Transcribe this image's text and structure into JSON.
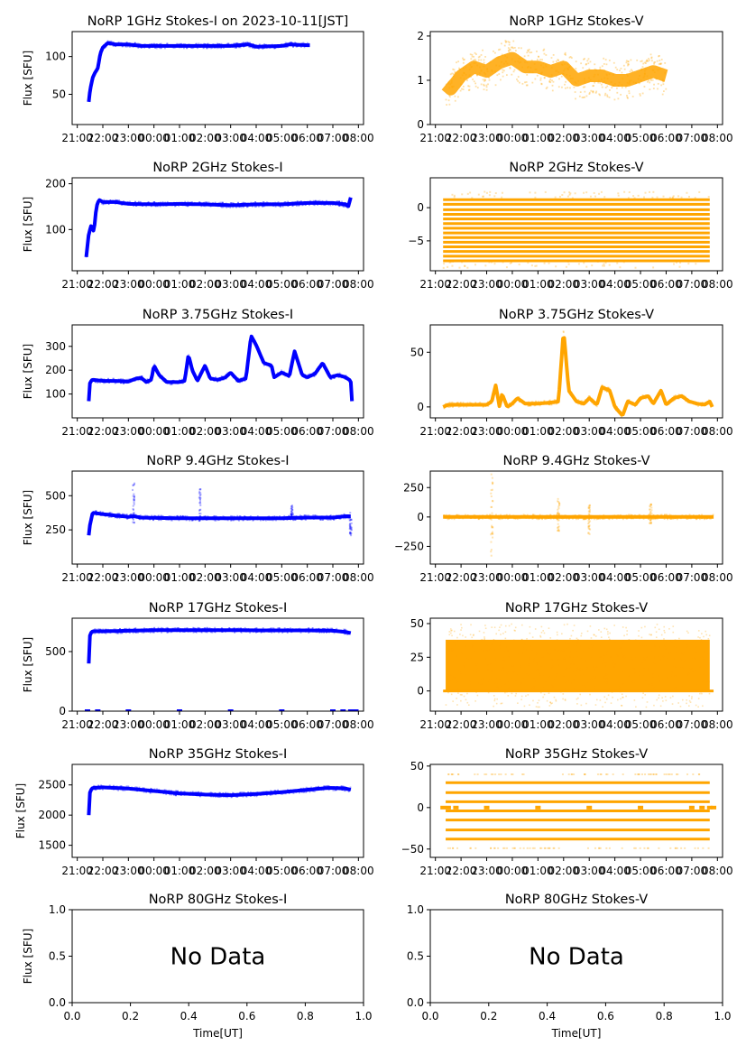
{
  "figure": {
    "ylabel": "Flux [SFU]",
    "xlabel": "Time[UT]",
    "no_data_text": "No Data",
    "time_ticks": [
      "21:00",
      "22:00",
      "23:00",
      "00:00",
      "01:00",
      "02:00",
      "03:00",
      "04:00",
      "05:00",
      "06:00",
      "07:00",
      "08:00"
    ],
    "colors": {
      "stokes_i": "#0000ff",
      "stokes_v": "#ffa500"
    }
  },
  "chart_data": [
    {
      "type": "scatter",
      "title": "NoRP 1GHz Stokes-I on 2023-10-11[JST]",
      "stokes": "I",
      "xlabel": "",
      "ylabel": "Flux [SFU]",
      "xlim_hours": [
        20.8,
        32.2
      ],
      "ylim": [
        10,
        133
      ],
      "yticks": [
        50,
        100
      ],
      "has_data": true,
      "x_hours": [
        21.45,
        21.5,
        21.6,
        21.7,
        21.8,
        21.9,
        22.0,
        22.1,
        22.2,
        22.5,
        23.0,
        23.5,
        24.0,
        25.0,
        26.0,
        27.0,
        27.7,
        28.0,
        29.0,
        29.3,
        30.0,
        30.1
      ],
      "values": [
        40,
        55,
        72,
        79,
        84,
        104,
        112,
        115,
        118,
        116,
        116,
        114,
        114,
        114,
        114,
        114,
        116,
        113,
        114,
        116,
        115,
        115
      ]
    },
    {
      "type": "scatter",
      "title": "NoRP 1GHz Stokes-V",
      "stokes": "V",
      "xlabel": "",
      "ylabel": "",
      "xlim_hours": [
        20.8,
        32.2
      ],
      "ylim": [
        0,
        2.1
      ],
      "yticks": [
        0,
        1,
        2
      ],
      "has_data": true,
      "x_hours": [
        21.4,
        21.6,
        22.0,
        22.5,
        23.0,
        23.5,
        24.0,
        24.5,
        25.0,
        25.5,
        26.0,
        26.5,
        27.0,
        27.5,
        28.0,
        28.5,
        29.0,
        29.5,
        30.0
      ],
      "values": [
        0.9,
        0.8,
        1.1,
        1.3,
        1.2,
        1.4,
        1.5,
        1.3,
        1.3,
        1.2,
        1.3,
        1.0,
        1.1,
        1.1,
        1.0,
        1.0,
        1.1,
        1.2,
        1.1
      ],
      "spread": 0.45
    },
    {
      "type": "scatter",
      "title": "NoRP 2GHz Stokes-I",
      "stokes": "I",
      "xlabel": "",
      "ylabel": "Flux [SFU]",
      "xlim_hours": [
        20.8,
        32.2
      ],
      "ylim": [
        10,
        213
      ],
      "yticks": [
        100,
        200
      ],
      "has_data": true,
      "x_hours": [
        21.35,
        21.45,
        21.55,
        21.65,
        21.75,
        21.85,
        22.0,
        22.5,
        23.0,
        24.0,
        25.0,
        26.0,
        27.0,
        28.0,
        29.0,
        30.0,
        31.0,
        31.5,
        31.6,
        31.7
      ],
      "values": [
        40,
        90,
        110,
        95,
        150,
        165,
        160,
        160,
        156,
        155,
        156,
        155,
        153,
        155,
        155,
        158,
        158,
        155,
        150,
        170
      ]
    },
    {
      "type": "scatter",
      "title": "NoRP 2GHz Stokes-V",
      "stokes": "V",
      "xlabel": "",
      "ylabel": "",
      "xlim_hours": [
        20.8,
        32.2
      ],
      "ylim": [
        -9.5,
        4.5
      ],
      "yticks": [
        -5,
        0
      ],
      "has_data": true,
      "quantized_levels": [
        1.2,
        0.5,
        -0.3,
        -1.0,
        -1.7,
        -2.4,
        -3.1,
        -3.8,
        -4.5,
        -5.2,
        -5.9,
        -6.6,
        -7.3,
        -8.0
      ],
      "x_range_hours": [
        21.3,
        31.7
      ]
    },
    {
      "type": "scatter",
      "title": "NoRP 3.75GHz Stokes-I",
      "stokes": "I",
      "xlabel": "",
      "ylabel": "Flux [SFU]",
      "xlim_hours": [
        20.8,
        32.2
      ],
      "ylim": [
        0,
        390
      ],
      "yticks": [
        100,
        200,
        300
      ],
      "has_data": true,
      "x_hours": [
        21.45,
        21.5,
        21.6,
        22.0,
        22.5,
        23.0,
        23.3,
        23.5,
        23.7,
        23.9,
        24.0,
        24.2,
        24.5,
        25.0,
        25.2,
        25.35,
        25.5,
        25.7,
        26.0,
        26.2,
        26.5,
        26.8,
        27.0,
        27.3,
        27.6,
        27.8,
        28.0,
        28.3,
        28.6,
        28.7,
        29.0,
        29.3,
        29.5,
        29.8,
        30.0,
        30.3,
        30.6,
        30.9,
        31.2,
        31.5,
        31.7,
        31.75
      ],
      "values": [
        70,
        150,
        160,
        155,
        155,
        152,
        165,
        168,
        150,
        160,
        220,
        180,
        150,
        150,
        155,
        265,
        200,
        155,
        220,
        165,
        160,
        170,
        190,
        155,
        165,
        345,
        305,
        230,
        220,
        170,
        190,
        175,
        280,
        180,
        170,
        185,
        230,
        170,
        180,
        170,
        155,
        70
      ]
    },
    {
      "type": "scatter",
      "title": "NoRP 3.75GHz Stokes-V",
      "stokes": "V",
      "xlabel": "",
      "ylabel": "",
      "xlim_hours": [
        20.8,
        32.2
      ],
      "ylim": [
        -10,
        75
      ],
      "yticks": [
        0,
        50
      ],
      "has_data": true,
      "x_hours": [
        21.3,
        21.5,
        22.0,
        22.5,
        23.0,
        23.2,
        23.35,
        23.5,
        23.6,
        23.8,
        24.0,
        24.2,
        24.5,
        25.0,
        25.5,
        25.8,
        26.0,
        26.2,
        26.5,
        26.8,
        27.0,
        27.3,
        27.5,
        27.8,
        28.0,
        28.3,
        28.5,
        28.8,
        29.0,
        29.3,
        29.5,
        29.8,
        30.0,
        30.3,
        30.6,
        30.9,
        31.2,
        31.5,
        31.7,
        31.8
      ],
      "values": [
        0,
        2,
        2,
        2,
        2,
        5,
        20,
        0,
        12,
        0,
        3,
        8,
        3,
        3,
        4,
        5,
        70,
        15,
        5,
        3,
        8,
        2,
        18,
        15,
        0,
        -8,
        5,
        2,
        8,
        10,
        3,
        15,
        2,
        8,
        10,
        5,
        3,
        2,
        5,
        0
      ]
    },
    {
      "type": "scatter",
      "title": "NoRP 9.4GHz Stokes-I",
      "stokes": "I",
      "xlabel": "",
      "ylabel": "Flux [SFU]",
      "xlim_hours": [
        20.8,
        32.2
      ],
      "ylim": [
        0,
        680
      ],
      "yticks": [
        250,
        500
      ],
      "has_data": true,
      "x_hours": [
        21.45,
        21.5,
        21.6,
        22.0,
        22.5,
        23.0,
        23.2,
        23.5,
        24.0,
        25.0,
        26.0,
        27.0,
        28.0,
        29.0,
        29.5,
        30.0,
        31.0,
        31.5,
        31.7
      ],
      "values": [
        210,
        290,
        375,
        365,
        355,
        345,
        350,
        340,
        338,
        335,
        335,
        335,
        335,
        335,
        338,
        340,
        340,
        350,
        350
      ],
      "spikes": [
        {
          "x": 23.2,
          "max": 620,
          "min": 270
        },
        {
          "x": 25.8,
          "max": 550,
          "min": 310
        },
        {
          "x": 29.4,
          "max": 430,
          "min": 330
        },
        {
          "x": 31.7,
          "max": 390,
          "min": 210
        }
      ]
    },
    {
      "type": "scatter",
      "title": "NoRP 9.4GHz Stokes-V",
      "stokes": "V",
      "xlabel": "",
      "ylabel": "",
      "xlim_hours": [
        20.8,
        32.2
      ],
      "ylim": [
        -400,
        390
      ],
      "yticks": [
        -250,
        0,
        250
      ],
      "has_data": true,
      "x_hours": [
        21.3,
        31.85
      ],
      "values": [
        0,
        0
      ],
      "spikes": [
        {
          "x": 23.2,
          "max": 370,
          "min": -330
        },
        {
          "x": 25.8,
          "max": 160,
          "min": -190
        },
        {
          "x": 27.0,
          "max": 100,
          "min": -160
        },
        {
          "x": 29.4,
          "max": 110,
          "min": -60
        }
      ]
    },
    {
      "type": "scatter",
      "title": "NoRP 17GHz Stokes-I",
      "stokes": "I",
      "xlabel": "",
      "ylabel": "Flux [SFU]",
      "xlim_hours": [
        20.8,
        32.2
      ],
      "ylim": [
        0,
        780
      ],
      "yticks": [
        0,
        500
      ],
      "has_data": true,
      "x_hours": [
        21.45,
        21.5,
        21.6,
        22.0,
        23.0,
        24.0,
        25.0,
        26.0,
        27.0,
        28.0,
        29.0,
        30.0,
        31.0,
        31.5,
        31.7
      ],
      "values": [
        400,
        650,
        670,
        670,
        675,
        680,
        680,
        680,
        680,
        678,
        678,
        678,
        675,
        665,
        655
      ],
      "zero_points_hours": [
        21.4,
        21.8,
        23.0,
        25.0,
        27.0,
        29.0,
        31.0,
        31.4,
        31.7,
        31.9
      ]
    },
    {
      "type": "scatter",
      "title": "NoRP 17GHz Stokes-V",
      "stokes": "V",
      "xlabel": "",
      "ylabel": "",
      "xlim_hours": [
        20.8,
        32.2
      ],
      "ylim": [
        -15,
        54
      ],
      "yticks": [
        0,
        25,
        50
      ],
      "has_data": true,
      "band": {
        "x_range_hours": [
          21.4,
          31.7
        ],
        "core": [
          0,
          38
        ],
        "outer": [
          -12,
          50
        ]
      }
    },
    {
      "type": "scatter",
      "title": "NoRP 35GHz Stokes-I",
      "stokes": "I",
      "xlabel": "",
      "ylabel": "Flux [SFU]",
      "xlim_hours": [
        20.8,
        32.2
      ],
      "ylim": [
        1300,
        2840
      ],
      "yticks": [
        1500,
        2000,
        2500
      ],
      "has_data": true,
      "x_hours": [
        21.45,
        21.5,
        21.6,
        22.0,
        23.0,
        24.0,
        25.0,
        26.0,
        27.0,
        28.0,
        29.0,
        30.0,
        30.8,
        31.0,
        31.5,
        31.7
      ],
      "values": [
        2000,
        2400,
        2450,
        2460,
        2440,
        2400,
        2360,
        2340,
        2330,
        2350,
        2380,
        2420,
        2450,
        2450,
        2440,
        2420
      ]
    },
    {
      "type": "scatter",
      "title": "NoRP 35GHz Stokes-V",
      "stokes": "V",
      "xlabel": "",
      "ylabel": "",
      "xlim_hours": [
        20.8,
        32.2
      ],
      "ylim": [
        -60,
        52
      ],
      "yticks": [
        -50,
        0,
        50
      ],
      "has_data": true,
      "quantized_levels": [
        30,
        18,
        7,
        -4,
        -15,
        -27,
        -38
      ],
      "faint_levels": [
        40,
        -49
      ],
      "zero_points_hours": [
        21.3,
        21.5,
        21.8,
        23.0,
        25.0,
        27.0,
        29.0,
        31.0,
        31.4,
        31.7,
        31.85
      ],
      "x_range_hours": [
        21.4,
        31.7
      ]
    },
    {
      "type": "scatter",
      "title": "NoRP 80GHz Stokes-I",
      "stokes": "I",
      "xlabel": "Time[UT]",
      "ylabel": "Flux [SFU]",
      "xlim": [
        0,
        1
      ],
      "ylim": [
        0,
        1
      ],
      "xticks": [
        "0.0",
        "0.2",
        "0.4",
        "0.6",
        "0.8",
        "1.0"
      ],
      "yticks": [
        "0.0",
        "0.5",
        "1.0"
      ],
      "has_data": false,
      "annotation": "No Data"
    },
    {
      "type": "scatter",
      "title": "NoRP 80GHz Stokes-V",
      "stokes": "V",
      "xlabel": "Time[UT]",
      "ylabel": "",
      "xlim": [
        0,
        1
      ],
      "ylim": [
        0,
        1
      ],
      "xticks": [
        "0.0",
        "0.2",
        "0.4",
        "0.6",
        "0.8",
        "1.0"
      ],
      "yticks": [
        "0.0",
        "0.5",
        "1.0"
      ],
      "has_data": false,
      "annotation": "No Data"
    }
  ]
}
